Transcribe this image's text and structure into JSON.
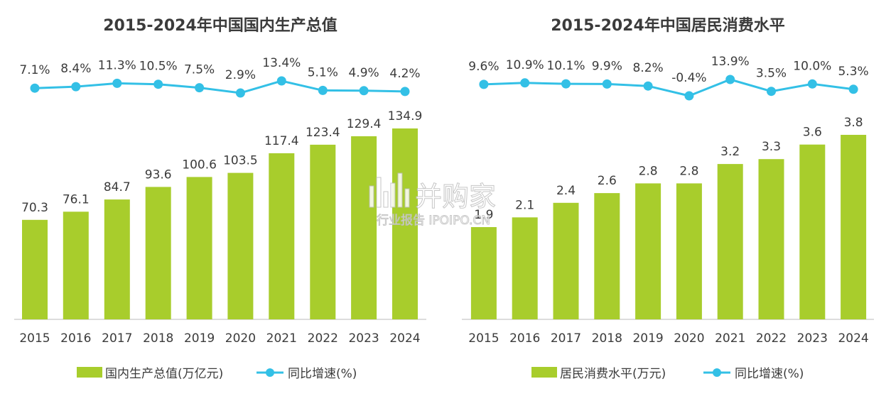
{
  "colors": {
    "bar": "#a8cd2c",
    "line": "#33c0e6",
    "axis": "#c8c8c8",
    "text": "#3b3b3b"
  },
  "watermark": {
    "brand": "并购家",
    "sub": "行业报告 IPOIPO.CN"
  },
  "chart_data": [
    {
      "type": "bar",
      "title": "2015-2024年中国国内生产总值",
      "categories": [
        "2015",
        "2016",
        "2017",
        "2018",
        "2019",
        "2020",
        "2021",
        "2022",
        "2023",
        "2024"
      ],
      "series": [
        {
          "name": "国内生产总值(万亿元)",
          "type": "bar",
          "values": [
            70.3,
            76.1,
            84.7,
            93.6,
            100.6,
            103.5,
            117.4,
            123.4,
            129.4,
            134.9
          ],
          "labels": [
            "70.3",
            "76.1",
            "84.7",
            "93.6",
            "100.6",
            "103.5",
            "117.4",
            "123.4",
            "129.4",
            "134.9"
          ]
        },
        {
          "name": "同比增速(%)",
          "type": "line",
          "values": [
            7.1,
            8.4,
            11.3,
            10.5,
            7.5,
            2.9,
            13.4,
            5.1,
            4.9,
            4.2
          ],
          "labels": [
            "7.1%",
            "8.4%",
            "11.3%",
            "10.5%",
            "7.5%",
            "2.9%",
            "13.4%",
            "5.1%",
            "4.9%",
            "4.2%"
          ]
        }
      ],
      "grid": false,
      "legend_position": "bottom"
    },
    {
      "type": "bar",
      "title": "2015-2024年中国居民消费水平",
      "categories": [
        "2015",
        "2016",
        "2017",
        "2018",
        "2019",
        "2020",
        "2021",
        "2022",
        "2023",
        "2024"
      ],
      "series": [
        {
          "name": "居民消费水平(万元)",
          "type": "bar",
          "values": [
            1.9,
            2.1,
            2.4,
            2.6,
            2.8,
            2.8,
            3.2,
            3.3,
            3.6,
            3.8
          ],
          "labels": [
            "1.9",
            "2.1",
            "2.4",
            "2.6",
            "2.8",
            "2.8",
            "3.2",
            "3.3",
            "3.6",
            "3.8"
          ]
        },
        {
          "name": "同比增速(%)",
          "type": "line",
          "values": [
            9.6,
            10.9,
            10.1,
            9.9,
            8.2,
            -0.4,
            13.9,
            3.5,
            10.0,
            5.3
          ],
          "labels": [
            "9.6%",
            "10.9%",
            "10.1%",
            "9.9%",
            "8.2%",
            "-0.4%",
            "13.9%",
            "3.5%",
            "10.0%",
            "5.3%"
          ]
        }
      ],
      "grid": false,
      "legend_position": "bottom"
    }
  ]
}
